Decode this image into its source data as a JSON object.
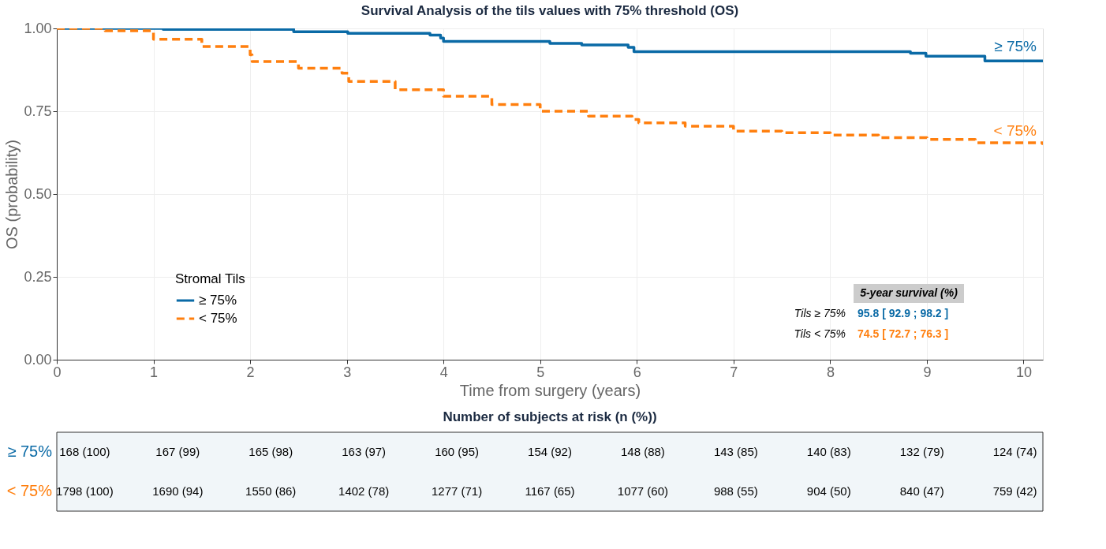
{
  "chart_data": {
    "type": "step",
    "title": "Survival Analysis of the tils values with 75% threshold (OS)",
    "xlabel": "Time from surgery (years)",
    "ylabel": "OS (probability)",
    "legend_title": "Stromal Tils",
    "legend": "bottom left",
    "grid": true,
    "xlim": [
      0,
      10.2
    ],
    "xticks": [
      0,
      1,
      2,
      3,
      4,
      5,
      6,
      7,
      8,
      9,
      10
    ],
    "ylim": [
      0,
      1
    ],
    "yticks": [
      {
        "value": 0,
        "label": "0.00"
      },
      {
        "value": 0.25,
        "label": "0.25"
      },
      {
        "value": 0.5,
        "label": "0.50"
      },
      {
        "value": 0.75,
        "label": "0.75"
      },
      {
        "value": 1,
        "label": "1.00"
      }
    ],
    "series": [
      {
        "name": "≥ 75%",
        "color": "#0a6aa6",
        "line_style": "solid",
        "x": [
          0,
          1.1,
          2.45,
          3.01,
          3.86,
          3.97,
          4.0,
          5.1,
          5.43,
          5.91,
          5.97,
          8.83,
          8.99,
          9.6,
          10.2
        ],
        "values": [
          1,
          0.997,
          0.99,
          0.985,
          0.98,
          0.971,
          0.961,
          0.955,
          0.95,
          0.943,
          0.93,
          0.925,
          0.916,
          0.902,
          0.902
        ]
      },
      {
        "name": "< 75%",
        "color": "#ff7f0e",
        "line_style": "dashed",
        "x": [
          0,
          0.5,
          1,
          1.5,
          2.0,
          2.02,
          2.5,
          2.95,
          3.02,
          3.5,
          4.0,
          4.5,
          5.0,
          5.5,
          5.95,
          6.02,
          6.5,
          7.0,
          7.5,
          8.0,
          8.5,
          9.0,
          9.5,
          10.2
        ],
        "values": [
          1,
          0.993,
          0.967,
          0.945,
          0.92,
          0.9,
          0.88,
          0.865,
          0.84,
          0.815,
          0.795,
          0.77,
          0.75,
          0.735,
          0.725,
          0.715,
          0.705,
          0.69,
          0.685,
          0.678,
          0.67,
          0.665,
          0.655,
          0.648
        ]
      }
    ],
    "annotations": [
      "5-year survival (%)",
      "Tils ≥ 75%",
      "95.8 [ 92.9 ; 98.2 ]",
      "Tils < 75%",
      "74.5 [ 72.7 ; 76.3 ]",
      "Number of subjects at risk (n (%))",
      "≥ 75%",
      "< 75%",
      "168 (100)",
      "167 (99)",
      "165 (98)",
      "163 (97)",
      "160 (95)",
      "154 (92)",
      "148 (88)",
      "143 (85)",
      "140 (83)",
      "132 (79)",
      "124 (74)",
      "1798 (100)",
      "1690 (94)",
      "1550 (86)",
      "1402 (78)",
      "1277 (71)",
      "1167 (65)",
      "1077 (60)",
      "988 (55)",
      "904 (50)",
      "840 (47)",
      "759 (42)"
    ]
  }
}
